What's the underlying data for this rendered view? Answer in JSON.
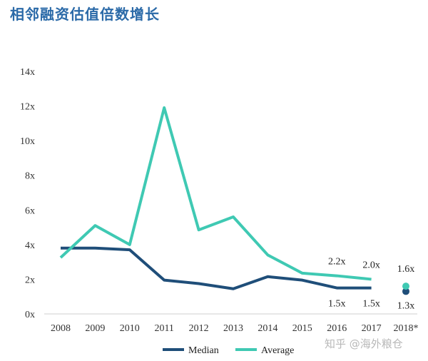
{
  "title": "相邻融资估值倍数增长",
  "watermark": "知乎 @海外粮仓",
  "colors": {
    "median": "#1f4e79",
    "average": "#3fc9b3",
    "title": "#2b6aa8"
  },
  "chart_data": {
    "type": "line",
    "title": "相邻融资估值倍数增长",
    "categories": [
      "2008",
      "2009",
      "2010",
      "2011",
      "2012",
      "2013",
      "2014",
      "2015",
      "2016",
      "2017",
      "2018*"
    ],
    "ylim": [
      0,
      14
    ],
    "yticks": [
      "0x",
      "2x",
      "4x",
      "6x",
      "8x",
      "10x",
      "12x",
      "14x"
    ],
    "grid": false,
    "legend": "bottom",
    "series": [
      {
        "name": "Median",
        "color": "#1f4e79",
        "values": [
          3.8,
          3.8,
          3.7,
          1.95,
          1.75,
          1.45,
          2.15,
          1.95,
          1.5,
          1.5,
          null
        ],
        "point": {
          "category": "2018*",
          "value": 1.3
        }
      },
      {
        "name": "Average",
        "color": "#3fc9b3",
        "values": [
          3.25,
          5.1,
          4.0,
          11.9,
          4.85,
          5.6,
          3.4,
          2.35,
          2.2,
          2.0,
          null
        ],
        "point": {
          "category": "2018*",
          "value": 1.6
        }
      }
    ],
    "annotations": [
      {
        "series": "Average",
        "category": "2016",
        "text": "2.2x"
      },
      {
        "series": "Average",
        "category": "2017",
        "text": "2.0x"
      },
      {
        "series": "Average",
        "category": "2018*",
        "text": "1.6x"
      },
      {
        "series": "Median",
        "category": "2016",
        "text": "1.5x"
      },
      {
        "series": "Median",
        "category": "2017",
        "text": "1.5x"
      },
      {
        "series": "Median",
        "category": "2018*",
        "text": "1.3x"
      }
    ]
  }
}
